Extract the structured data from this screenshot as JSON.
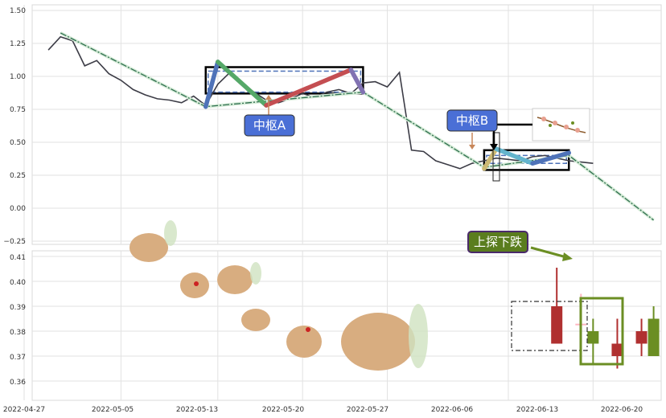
{
  "chart_data": [
    {
      "type": "line",
      "panel": "top",
      "ylim": [
        -0.27,
        1.52
      ],
      "y_ticks": [
        "1.50",
        "1.25",
        "1.00",
        "0.75",
        "0.50",
        "0.25",
        "0.00",
        "−0.25"
      ],
      "grid": true,
      "series": [
        {
          "role": "price",
          "color": "#3c3c46",
          "points": [
            [
              "2022-04-29",
              1.2
            ],
            [
              "2022-04-30",
              1.3
            ],
            [
              "2022-05-01",
              1.27
            ],
            [
              "2022-05-02",
              1.08
            ],
            [
              "2022-05-03",
              1.12
            ],
            [
              "2022-05-04",
              1.02
            ],
            [
              "2022-05-05",
              0.97
            ],
            [
              "2022-05-06",
              0.9
            ],
            [
              "2022-05-07",
              0.86
            ],
            [
              "2022-05-08",
              0.83
            ],
            [
              "2022-05-09",
              0.82
            ],
            [
              "2022-05-10",
              0.8
            ],
            [
              "2022-05-11",
              0.85
            ],
            [
              "2022-05-12",
              0.78
            ],
            [
              "2022-05-13",
              0.94
            ],
            [
              "2022-05-14",
              1.03
            ],
            [
              "2022-05-15",
              0.95
            ],
            [
              "2022-05-16",
              0.88
            ],
            [
              "2022-05-17",
              0.82
            ],
            [
              "2022-05-18",
              0.8
            ],
            [
              "2022-05-19",
              0.83
            ],
            [
              "2022-05-20",
              0.87
            ],
            [
              "2022-05-21",
              0.84
            ],
            [
              "2022-05-22",
              0.88
            ],
            [
              "2022-05-23",
              0.9
            ],
            [
              "2022-05-24",
              0.87
            ],
            [
              "2022-05-25",
              0.95
            ],
            [
              "2022-05-26",
              0.96
            ],
            [
              "2022-05-27",
              0.92
            ],
            [
              "2022-05-28",
              1.03
            ],
            [
              "2022-05-29",
              0.44
            ],
            [
              "2022-05-30",
              0.43
            ],
            [
              "2022-05-31",
              0.36
            ],
            [
              "2022-06-01",
              0.33
            ],
            [
              "2022-06-02",
              0.3
            ],
            [
              "2022-06-03",
              0.34
            ],
            [
              "2022-06-04",
              0.36
            ],
            [
              "2022-06-05",
              0.38
            ],
            [
              "2022-06-06",
              0.37
            ],
            [
              "2022-06-07",
              0.36
            ],
            [
              "2022-06-08",
              0.39
            ],
            [
              "2022-06-09",
              0.4
            ],
            [
              "2022-06-10",
              0.38
            ],
            [
              "2022-06-11",
              0.36
            ],
            [
              "2022-06-12",
              0.35
            ],
            [
              "2022-06-13",
              0.34
            ]
          ]
        },
        {
          "role": "trend",
          "color": "#2e6e4e",
          "points": [
            [
              "2022-04-30",
              1.33
            ],
            [
              "2022-05-12",
              0.77
            ],
            [
              "2022-05-25",
              0.88
            ],
            [
              "2022-06-04",
              0.31
            ],
            [
              "2022-06-11",
              0.4
            ],
            [
              "2022-06-18",
              -0.09
            ]
          ]
        },
        {
          "role": "stroke",
          "points": [
            [
              "2022-05-12",
              0.77,
              "#4e72b8"
            ],
            [
              "2022-05-13",
              1.11,
              "#55a868"
            ],
            [
              "2022-05-17",
              0.78,
              "#c44e52"
            ],
            [
              "2022-05-24",
              1.05,
              "#8172b2"
            ],
            [
              "2022-05-25",
              0.88,
              ""
            ]
          ]
        },
        {
          "role": "stroke",
          "points": [
            [
              "2022-06-04",
              0.3,
              "#ccb974"
            ],
            [
              "2022-06-05",
              0.45,
              "#64b5cd"
            ],
            [
              "2022-06-08",
              0.34,
              "#4e72b8"
            ],
            [
              "2022-06-11",
              0.42,
              ""
            ]
          ]
        }
      ],
      "boxes": [
        {
          "name": "zhongshu-a",
          "x0": "2022-05-12",
          "x1": "2022-05-25",
          "y0": 0.87,
          "y1": 1.07,
          "inner0": 0.88,
          "inner1": 1.04,
          "color": "#4e72b8"
        },
        {
          "name": "zhongshu-b",
          "x0": "2022-06-04",
          "x1": "2022-06-11",
          "y0": 0.29,
          "y1": 0.44,
          "inner0": 0.34,
          "inner1": 0.4,
          "color": "#4e72b8"
        }
      ],
      "labels": [
        "中枢A",
        "中枢B"
      ]
    },
    {
      "type": "candlestick",
      "panel": "bottom",
      "ylim": [
        0.3535,
        0.4135
      ],
      "y_ticks": [
        "0.41",
        "0.40",
        "0.39",
        "0.38",
        "0.37",
        "0.36"
      ],
      "x_ticks": [
        "2022-04-27",
        "2022-05-05",
        "2022-05-13",
        "2022-05-20",
        "2022-05-27",
        "2022-06-06",
        "2022-06-13",
        "2022-06-20"
      ],
      "grid": true,
      "candles": [
        {
          "date": "2022-06-10",
          "open": 0.375,
          "high": 0.4055,
          "low": 0.375,
          "close": 0.39,
          "color": "#b03030"
        },
        {
          "date": "2022-06-12",
          "open": 0.383,
          "high": 0.395,
          "low": 0.38,
          "close": 0.383,
          "color": "#ffb6c1"
        },
        {
          "date": "2022-06-13",
          "open": 0.38,
          "high": 0.385,
          "low": 0.367,
          "close": 0.375,
          "color": "#6b8e23"
        },
        {
          "date": "2022-06-15",
          "open": 0.37,
          "high": 0.385,
          "low": 0.365,
          "close": 0.375,
          "color": "#b03030"
        },
        {
          "date": "2022-06-17",
          "open": 0.375,
          "high": 0.385,
          "low": 0.37,
          "close": 0.38,
          "color": "#b03030"
        },
        {
          "date": "2022-06-18",
          "open": 0.37,
          "high": 0.39,
          "low": 0.37,
          "close": 0.385,
          "color": "#6b8e23"
        },
        {
          "date": "2022-06-20",
          "open": 0.375,
          "high": 0.38,
          "low": 0.36,
          "close": 0.37,
          "color": "#ffb6c1"
        }
      ],
      "labels": [
        "上探下跌"
      ]
    }
  ]
}
